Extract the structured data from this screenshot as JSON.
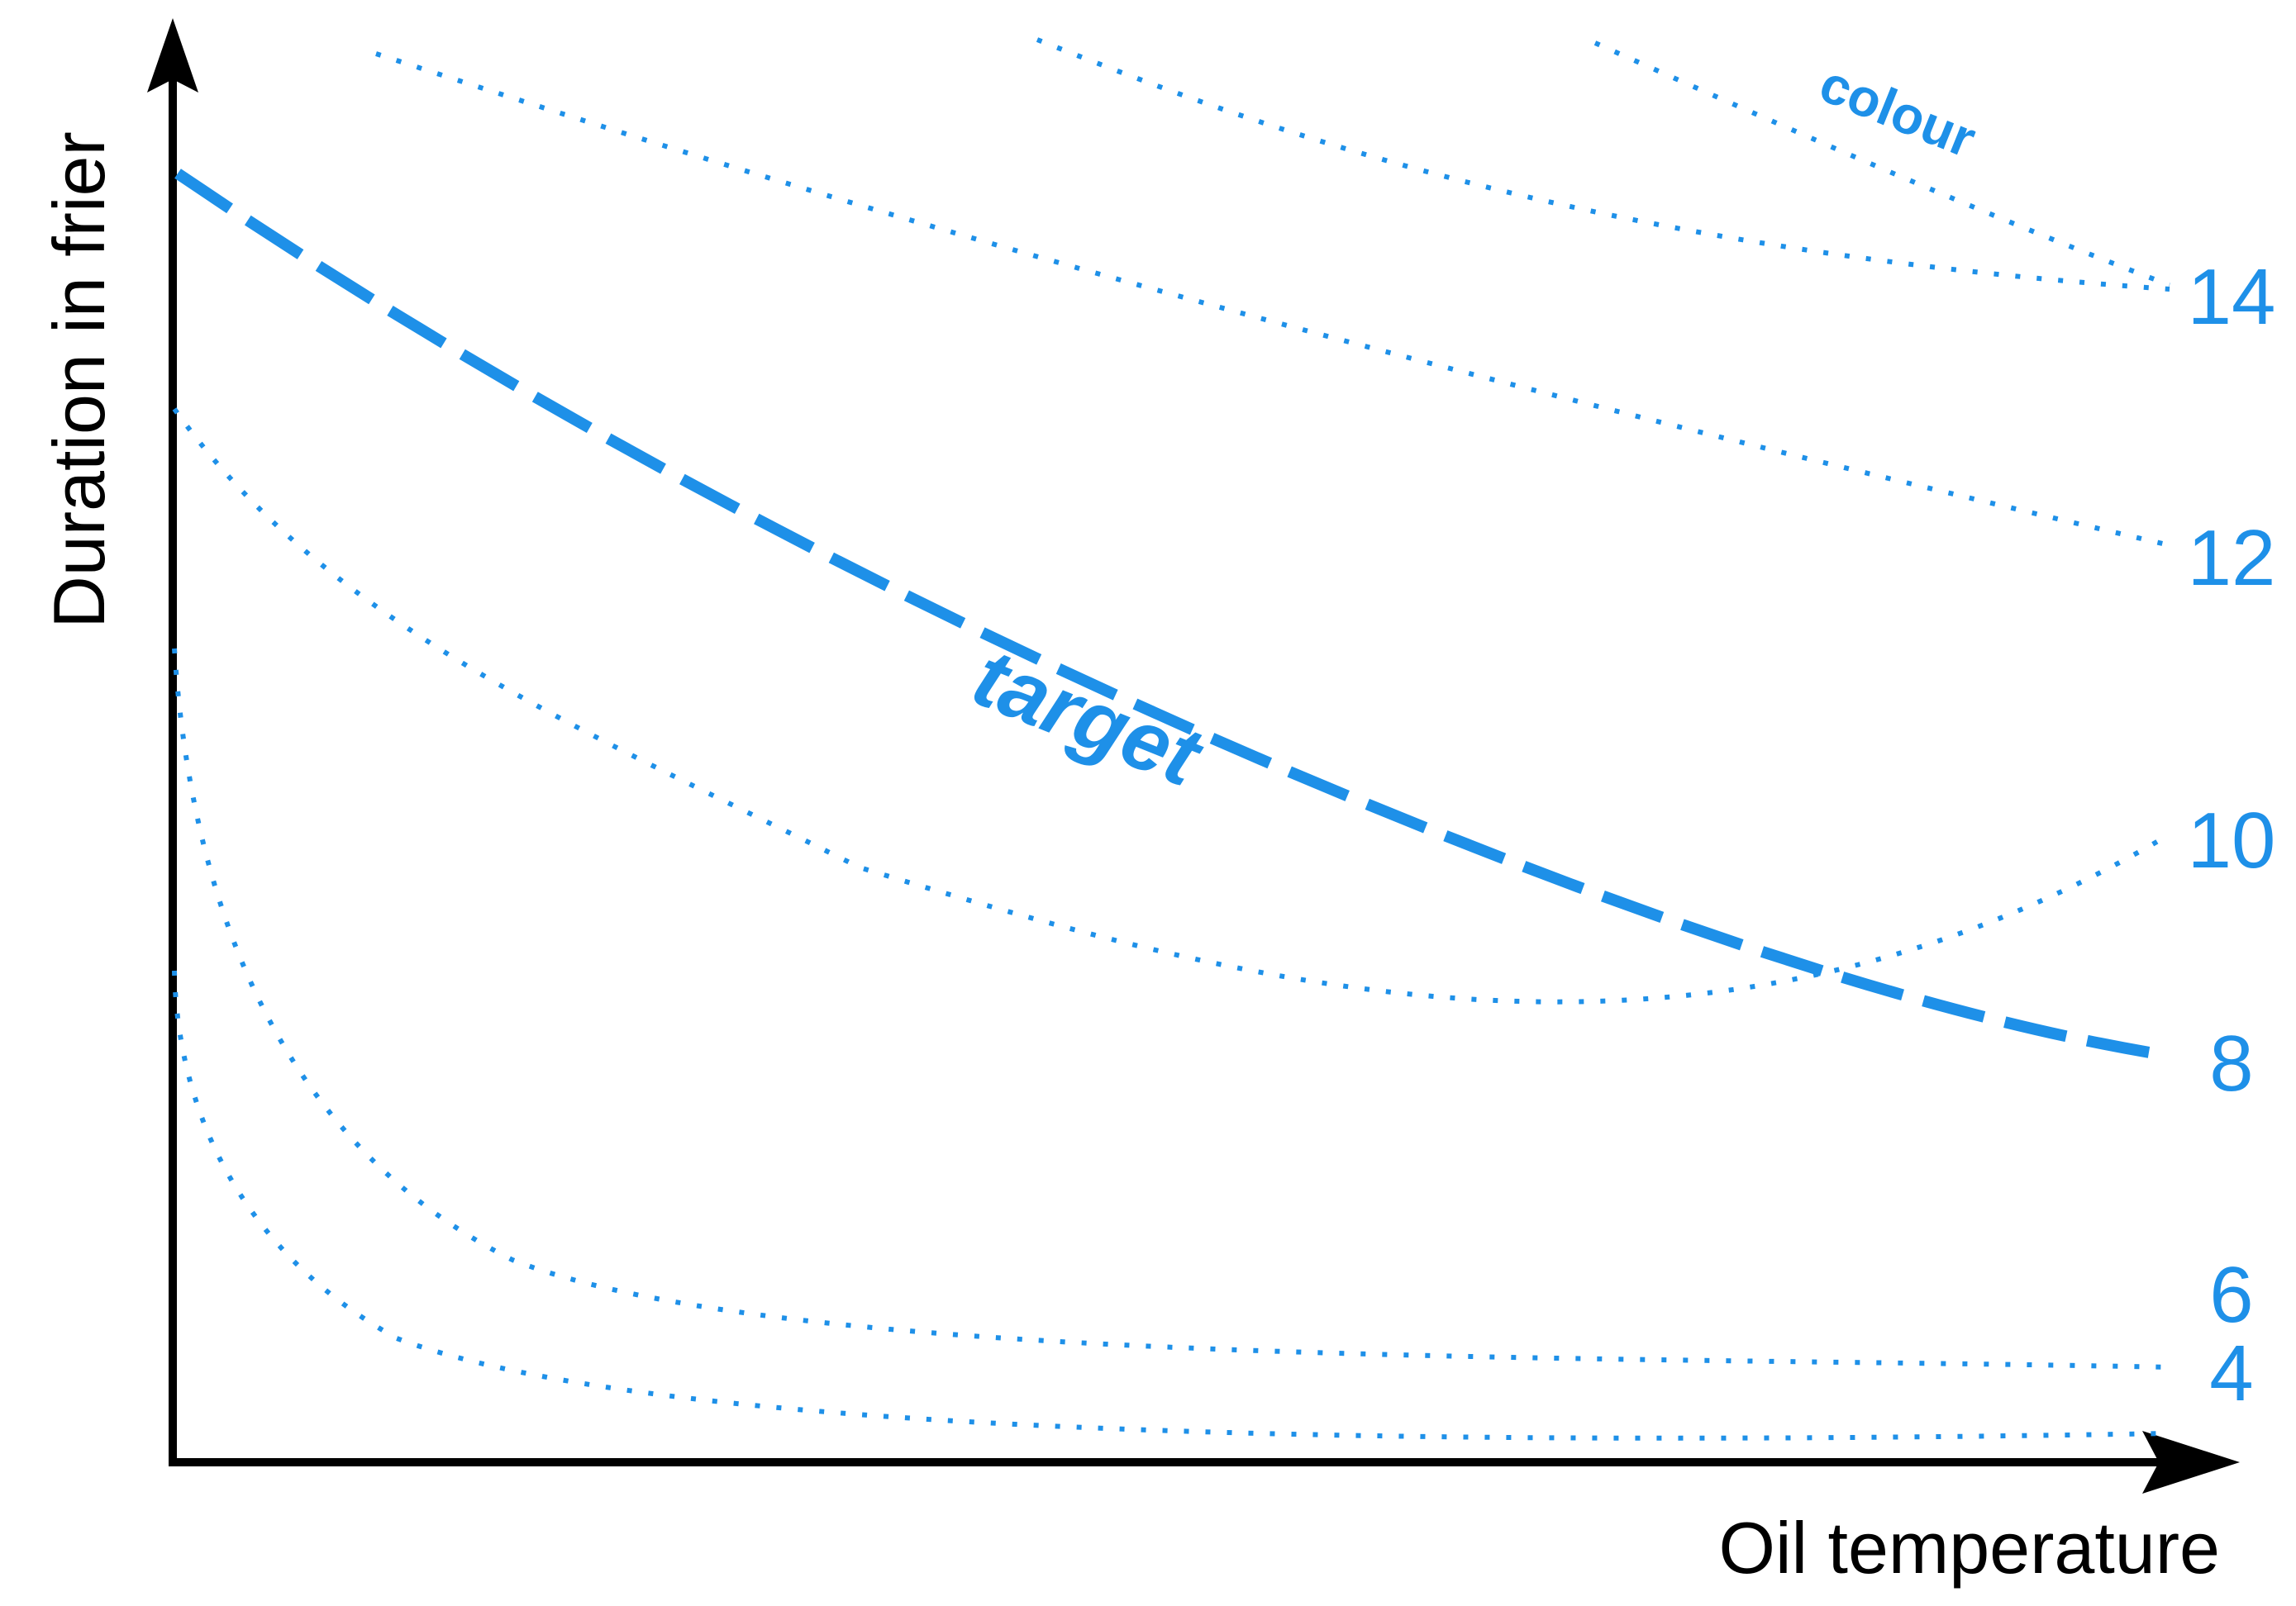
{
  "axes": {
    "x_title": "Oil temperature",
    "y_title": "Duration in frier"
  },
  "captions": {
    "target": "target",
    "colour": "colour"
  },
  "contour_levels": [
    {
      "key": "level_4",
      "label": "4",
      "style": "dotted"
    },
    {
      "key": "level_6",
      "label": "6",
      "style": "dotted"
    },
    {
      "key": "level_8",
      "label": "8",
      "style": "dashed-bold"
    },
    {
      "key": "level_10",
      "label": "10",
      "style": "dotted"
    },
    {
      "key": "level_12",
      "label": "12",
      "style": "dotted"
    },
    {
      "key": "level_14",
      "label": "14",
      "style": "dotted"
    }
  ],
  "colors": {
    "curves": "#1e90e8",
    "axes": "#000000"
  }
}
